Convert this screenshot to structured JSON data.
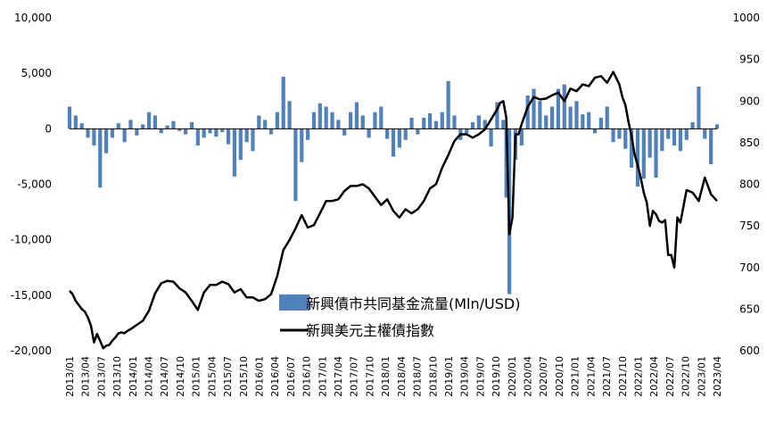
{
  "chart_data": {
    "type": "bar+line",
    "x_categories": [
      "2013/01",
      "2013/04",
      "2013/07",
      "2013/10",
      "2014/01",
      "2014/04",
      "2014/07",
      "2014/10",
      "2015/01",
      "2015/04",
      "2015/07",
      "2015/10",
      "2016/01",
      "2016/04",
      "2016/07",
      "2016/10",
      "2017/01",
      "2017/04",
      "2017/07",
      "2017/10",
      "2018/01",
      "2018/04",
      "2018/07",
      "2018/10",
      "2019/01",
      "2019/04",
      "2019/07",
      "2019/10",
      "2020/01",
      "2020/04",
      "2020/07",
      "2020/10",
      "2021/01",
      "2021/04",
      "2021/07",
      "2021/10",
      "2022/01",
      "2022/04",
      "2022/07",
      "2022/10",
      "2023/01",
      "2023/04"
    ],
    "y_left": {
      "ticks": [
        "10,000",
        "5,000",
        "0",
        "-5,000",
        "-10,000",
        "-15,000",
        "-20,000"
      ],
      "range": [
        -20000,
        10000
      ]
    },
    "y_right": {
      "ticks": [
        "1000",
        "950",
        "900",
        "850",
        "800",
        "750",
        "700",
        "650",
        "600"
      ],
      "range": [
        600,
        1000
      ]
    },
    "series": [
      {
        "name": "新興債市共同基金流量(Mln/USD)",
        "type": "bar",
        "color": "#4f81bd",
        "axis": "left",
        "x": [
          2013.0,
          2013.1,
          2013.2,
          2013.3,
          2013.4,
          2013.5,
          2013.6,
          2013.7,
          2013.8,
          2013.9,
          2014.0,
          2014.1,
          2014.2,
          2014.3,
          2014.4,
          2014.5,
          2014.6,
          2014.7,
          2014.8,
          2014.9,
          2015.0,
          2015.1,
          2015.2,
          2015.3,
          2015.4,
          2015.5,
          2015.6,
          2015.7,
          2015.8,
          2015.9,
          2016.0,
          2016.1,
          2016.2,
          2016.3,
          2016.4,
          2016.5,
          2016.6,
          2016.7,
          2016.8,
          2016.9,
          2017.0,
          2017.1,
          2017.2,
          2017.3,
          2017.4,
          2017.5,
          2017.6,
          2017.7,
          2017.8,
          2017.9,
          2018.0,
          2018.1,
          2018.2,
          2018.3,
          2018.4,
          2018.5,
          2018.6,
          2018.7,
          2018.8,
          2018.9,
          2019.0,
          2019.1,
          2019.2,
          2019.3,
          2019.4,
          2019.5,
          2019.6,
          2019.7,
          2019.8,
          2019.9,
          2020.0,
          2020.1,
          2020.15,
          2020.2,
          2020.3,
          2020.4,
          2020.5,
          2020.6,
          2020.7,
          2020.8,
          2020.9,
          2021.0,
          2021.1,
          2021.2,
          2021.3,
          2021.4,
          2021.5,
          2021.6,
          2021.7,
          2021.8,
          2021.9,
          2022.0,
          2022.1,
          2022.2,
          2022.3,
          2022.4,
          2022.5,
          2022.6,
          2022.7,
          2022.8,
          2022.9,
          2023.0,
          2023.1,
          2023.2,
          2023.3,
          2023.4,
          2023.5,
          2023.6
        ],
        "values": [
          2000,
          1200,
          500,
          -800,
          -1500,
          -5300,
          -2200,
          -800,
          500,
          -1200,
          800,
          -600,
          400,
          1500,
          1200,
          -400,
          300,
          700,
          -200,
          -500,
          600,
          -1500,
          -800,
          -400,
          -700,
          -300,
          -1400,
          -4300,
          -2800,
          -1200,
          -2000,
          1200,
          800,
          -500,
          1500,
          4700,
          2500,
          -6500,
          -3000,
          -1000,
          1500,
          2300,
          2000,
          1500,
          800,
          -600,
          1500,
          2400,
          1200,
          -800,
          1500,
          2000,
          -900,
          -2500,
          -1700,
          -1000,
          1000,
          -500,
          1000,
          1400,
          700,
          1500,
          4300,
          1200,
          -1000,
          -400,
          600,
          1200,
          800,
          -1600,
          2400,
          800,
          -6200,
          -14900,
          -2800,
          -1500,
          3000,
          3600,
          2500,
          1200,
          2000,
          3600,
          4000,
          2000,
          2500,
          1300,
          1500,
          -400,
          1000,
          2000,
          -1200,
          -900,
          -1800,
          -3500,
          -5200,
          -4500,
          -2600,
          -4400,
          -2000,
          -900,
          -1500,
          -2000,
          -1000,
          600,
          3800,
          -900,
          -3200,
          400
        ]
      },
      {
        "name": "新興美元主權債指數",
        "type": "line",
        "color": "#000000",
        "axis": "right",
        "x": [
          2013.0,
          2013.05,
          2013.1,
          2013.15,
          2013.2,
          2013.25,
          2013.3,
          2013.35,
          2013.4,
          2013.45,
          2013.5,
          2013.55,
          2013.6,
          2013.65,
          2013.7,
          2013.75,
          2013.8,
          2013.85,
          2013.9,
          2013.95,
          2014.0,
          2014.1,
          2014.2,
          2014.3,
          2014.4,
          2014.5,
          2014.6,
          2014.7,
          2014.8,
          2014.9,
          2015.0,
          2015.1,
          2015.2,
          2015.3,
          2015.4,
          2015.5,
          2015.6,
          2015.7,
          2015.8,
          2015.9,
          2016.0,
          2016.1,
          2016.2,
          2016.3,
          2016.4,
          2016.5,
          2016.6,
          2016.7,
          2016.8,
          2016.9,
          2017.0,
          2017.1,
          2017.2,
          2017.3,
          2017.4,
          2017.5,
          2017.6,
          2017.7,
          2017.8,
          2017.9,
          2018.0,
          2018.1,
          2018.2,
          2018.3,
          2018.4,
          2018.5,
          2018.6,
          2018.7,
          2018.8,
          2018.9,
          2019.0,
          2019.1,
          2019.2,
          2019.3,
          2019.4,
          2019.5,
          2019.6,
          2019.7,
          2019.8,
          2019.9,
          2020.0,
          2020.05,
          2020.1,
          2020.15,
          2020.2,
          2020.25,
          2020.3,
          2020.35,
          2020.4,
          2020.5,
          2020.6,
          2020.7,
          2020.8,
          2020.9,
          2021.0,
          2021.1,
          2021.2,
          2021.3,
          2021.4,
          2021.5,
          2021.6,
          2021.7,
          2021.8,
          2021.9,
          2022.0,
          2022.05,
          2022.1,
          2022.15,
          2022.2,
          2022.25,
          2022.3,
          2022.35,
          2022.4,
          2022.45,
          2022.5,
          2022.55,
          2022.6,
          2022.65,
          2022.7,
          2022.75,
          2022.8,
          2022.85,
          2022.9,
          2022.95,
          2023.0,
          2023.1,
          2023.2,
          2023.3,
          2023.4,
          2023.5,
          2023.6
        ],
        "values": [
          672,
          668,
          660,
          655,
          650,
          647,
          640,
          630,
          610,
          620,
          612,
          603,
          606,
          607,
          612,
          616,
          621,
          622,
          621,
          624,
          626,
          631,
          636,
          648,
          669,
          681,
          684,
          683,
          675,
          670,
          660,
          649,
          670,
          679,
          679,
          683,
          680,
          670,
          674,
          664,
          664,
          660,
          662,
          668,
          690,
          721,
          733,
          747,
          763,
          748,
          751,
          765,
          780,
          780,
          782,
          792,
          798,
          798,
          800,
          795,
          785,
          775,
          782,
          768,
          760,
          770,
          765,
          770,
          780,
          795,
          800,
          820,
          835,
          852,
          860,
          860,
          856,
          860,
          866,
          878,
          890,
          898,
          900,
          880,
          740,
          760,
          860,
          860,
          872,
          893,
          905,
          902,
          903,
          907,
          910,
          900,
          915,
          912,
          920,
          918,
          928,
          930,
          922,
          935,
          920,
          905,
          895,
          875,
          858,
          836,
          823,
          808,
          790,
          778,
          750,
          768,
          764,
          756,
          754,
          757,
          715,
          715,
          700,
          760,
          754,
          793,
          790,
          780,
          808,
          788,
          780
        ]
      }
    ],
    "legend_position": "lower-right inside plot"
  }
}
